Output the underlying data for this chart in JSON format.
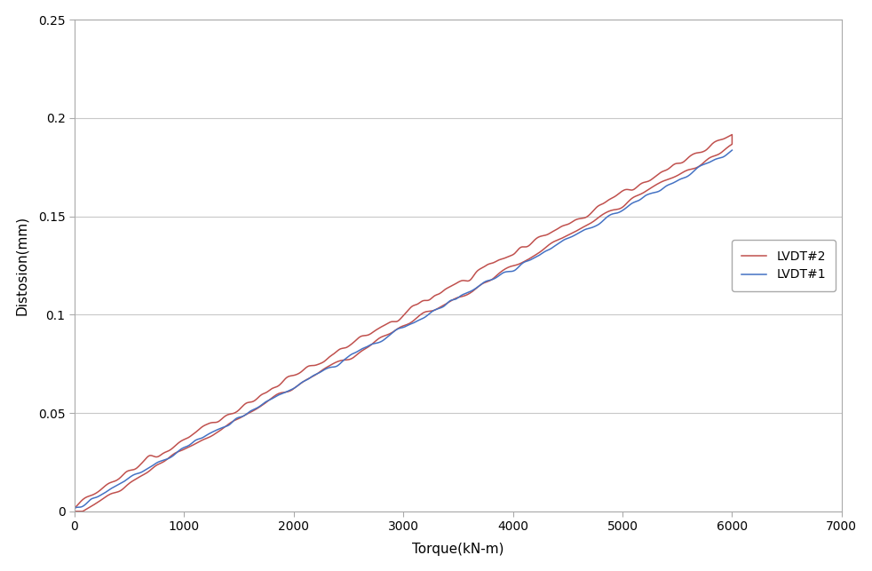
{
  "title": "",
  "xlabel": "Torque(kN-m)",
  "ylabel": "Distosion(mm)",
  "xlim": [
    0,
    7000
  ],
  "ylim": [
    0,
    0.25
  ],
  "xticks": [
    0,
    1000,
    2000,
    3000,
    4000,
    5000,
    6000,
    7000
  ],
  "yticks": [
    0,
    0.05,
    0.1,
    0.15,
    0.2,
    0.25
  ],
  "legend_labels": [
    "LVDT#1",
    "LVDT#2"
  ],
  "line1_color": "#4472C4",
  "line2_color": "#C0504D",
  "background_color": "#ffffff",
  "grid_color": "#C8C8C8",
  "spine_color": "#AAAAAA",
  "figsize": [
    9.82,
    6.43
  ],
  "dpi": 100
}
